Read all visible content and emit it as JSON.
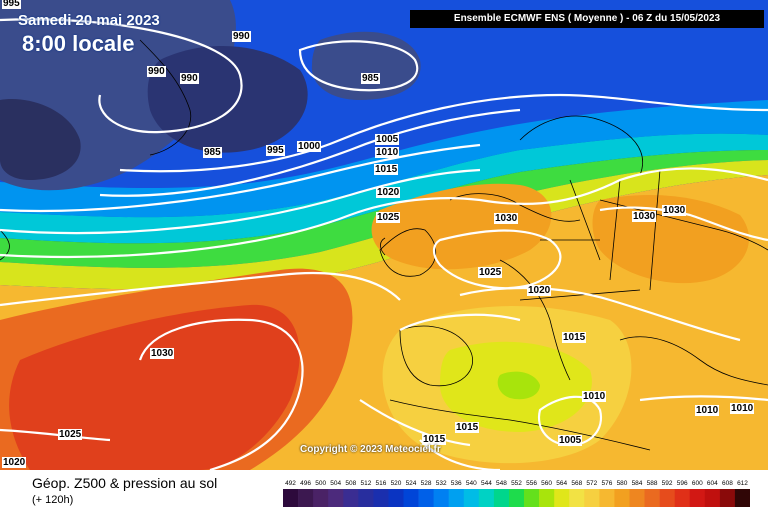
{
  "header": {
    "date": "Samedi 20 mai 2023",
    "time": "8:00 locale",
    "run_info": "Ensemble ECMWF ENS  ( Moyenne )  -  06 Z du 15/05/2023"
  },
  "footer": {
    "title": "Géop. Z500 & pression au sol",
    "lead_time": "(+ 120h)",
    "copyright": "Copyright © 2023 Meteociel.fr"
  },
  "color_scale": {
    "labels": [
      "492",
      "496",
      "500",
      "504",
      "508",
      "512",
      "516",
      "520",
      "524",
      "528",
      "532",
      "536",
      "540",
      "544",
      "548",
      "552",
      "556",
      "560",
      "564",
      "568",
      "572",
      "576",
      "580",
      "584",
      "588",
      "592",
      "596",
      "600",
      "604",
      "608",
      "612"
    ],
    "colors": [
      "#2d0a3c",
      "#3c1850",
      "#4a2266",
      "#4c2a7c",
      "#3a2d92",
      "#282e9e",
      "#1a2fae",
      "#0a34c2",
      "#0045d8",
      "#0060e8",
      "#0080f2",
      "#00a0f0",
      "#00bce6",
      "#00d2c4",
      "#00d68c",
      "#1edc4c",
      "#64e01c",
      "#a8e40c",
      "#e0e61a",
      "#f2e244",
      "#f6d040",
      "#f6b830",
      "#f2a020",
      "#ee8620",
      "#ea6a20",
      "#e64c1c",
      "#e03018",
      "#d21814",
      "#c0100e",
      "#8a0a0a",
      "#300606"
    ]
  },
  "pressure_labels": [
    "990",
    "990",
    "990",
    "985",
    "985",
    "995",
    "1000",
    "1005",
    "1010",
    "1015",
    "1020",
    "1025",
    "1030",
    "1030",
    "1030",
    "1025",
    "1020",
    "1015",
    "1010",
    "1010",
    "1010",
    "1005",
    "1015",
    "1015",
    "1030",
    "1025",
    "1020",
    "995"
  ]
}
